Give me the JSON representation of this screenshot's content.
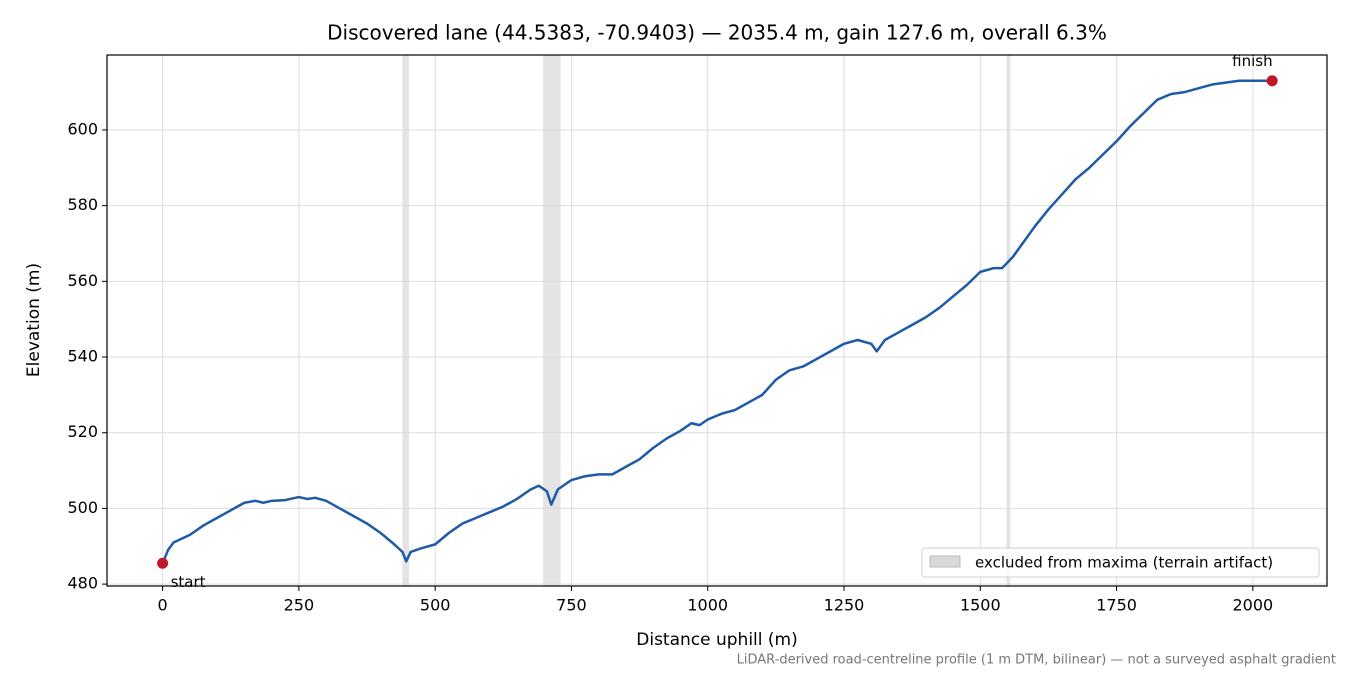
{
  "chart_data": {
    "type": "line",
    "title": "Discovered lane (44.5383, -70.9403) — 2035.4 m, gain 127.6 m, overall 6.3%",
    "xlabel": "Distance uphill (m)",
    "ylabel": "Elevation (m)",
    "footnote": "LiDAR-derived road-centreline profile (1 m DTM, bilinear) — not a surveyed asphalt gradient",
    "xlim": [
      -102,
      2136
    ],
    "ylim": [
      479.5,
      619.8
    ],
    "xticks": [
      0,
      250,
      500,
      750,
      1000,
      1250,
      1500,
      1750,
      2000
    ],
    "yticks": [
      480,
      500,
      520,
      540,
      560,
      580,
      600
    ],
    "grid": true,
    "legend_position": "lower right",
    "excluded": {
      "name": "excluded from maxima (terrain artifact)",
      "color": "#d9d9d9",
      "spans": [
        [
          440,
          452
        ],
        [
          698,
          730
        ],
        [
          1548,
          1555
        ]
      ]
    },
    "markers": {
      "color": "#c0182a",
      "points": [
        {
          "label": "start",
          "x": 0,
          "y": 485.5
        },
        {
          "label": "finish",
          "x": 2035.4,
          "y": 613
        }
      ]
    },
    "series": [
      {
        "color": "#1f5aa6",
        "x": [
          0,
          10,
          20,
          50,
          75,
          100,
          125,
          150,
          170,
          185,
          200,
          225,
          250,
          265,
          280,
          300,
          325,
          350,
          375,
          400,
          425,
          440,
          447,
          455,
          475,
          500,
          525,
          550,
          575,
          600,
          625,
          650,
          675,
          690,
          705,
          713,
          725,
          750,
          775,
          800,
          825,
          850,
          875,
          900,
          925,
          950,
          970,
          985,
          1000,
          1025,
          1050,
          1075,
          1100,
          1125,
          1150,
          1175,
          1200,
          1225,
          1250,
          1275,
          1300,
          1310,
          1325,
          1350,
          1375,
          1400,
          1425,
          1450,
          1475,
          1500,
          1525,
          1540,
          1560,
          1575,
          1600,
          1625,
          1650,
          1675,
          1700,
          1725,
          1750,
          1775,
          1800,
          1825,
          1850,
          1875,
          1900,
          1925,
          1950,
          1975,
          2000,
          2035
        ],
        "values": [
          485.5,
          489,
          491,
          493,
          495.5,
          497.5,
          499.5,
          501.5,
          502,
          501.5,
          502,
          502.2,
          503,
          502.5,
          502.8,
          502,
          500,
          498,
          496,
          493.5,
          490.5,
          488.5,
          486,
          488.5,
          489.5,
          490.5,
          493.5,
          496,
          497.5,
          499,
          500.5,
          502.5,
          505,
          506,
          504.5,
          501,
          505,
          507.5,
          508.5,
          509,
          509,
          511,
          513,
          516,
          518.5,
          520.5,
          522.5,
          522,
          523.5,
          525,
          526,
          528,
          530,
          534,
          536.5,
          537.5,
          539.5,
          541.5,
          543.5,
          544.5,
          543.5,
          541.5,
          544.5,
          546.5,
          548.5,
          550.5,
          553,
          556,
          559,
          562.5,
          563.5,
          563.5,
          566.5,
          569.5,
          574.5,
          579,
          583,
          587,
          590,
          593.5,
          597,
          601,
          604.5,
          608,
          609.5,
          610,
          611,
          612,
          612.5,
          613,
          613,
          613
        ]
      }
    ]
  }
}
